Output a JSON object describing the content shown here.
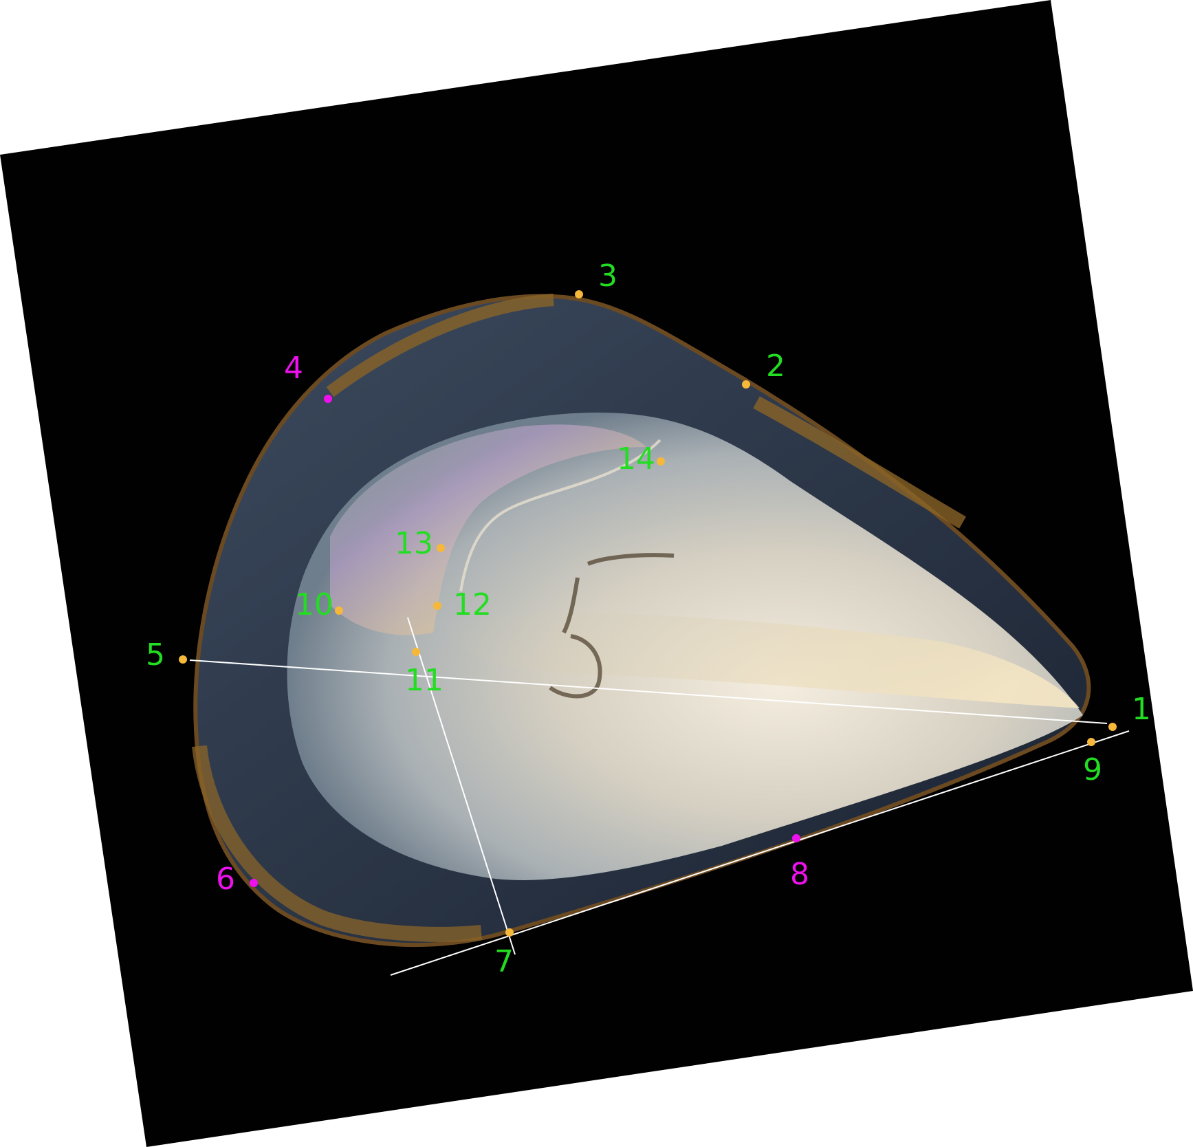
{
  "colors": {
    "background_board": "#010101",
    "landmark_dot_standard": "#f5b83a",
    "landmark_dot_semilandmark": "#ee11ee",
    "label_standard": "#22dd22",
    "label_semilandmark": "#ee11ee",
    "measurement_line": "#ffffff"
  },
  "landmarks": [
    {
      "label": "1",
      "type": "standard"
    },
    {
      "label": "2",
      "type": "standard"
    },
    {
      "label": "3",
      "type": "standard"
    },
    {
      "label": "4",
      "type": "semilandmark"
    },
    {
      "label": "5",
      "type": "standard"
    },
    {
      "label": "6",
      "type": "semilandmark"
    },
    {
      "label": "7",
      "type": "standard"
    },
    {
      "label": "8",
      "type": "semilandmark"
    },
    {
      "label": "9",
      "type": "standard"
    },
    {
      "label": "10",
      "type": "standard"
    },
    {
      "label": "11",
      "type": "standard"
    },
    {
      "label": "12",
      "type": "standard"
    },
    {
      "label": "13",
      "type": "standard"
    },
    {
      "label": "14",
      "type": "standard"
    }
  ]
}
